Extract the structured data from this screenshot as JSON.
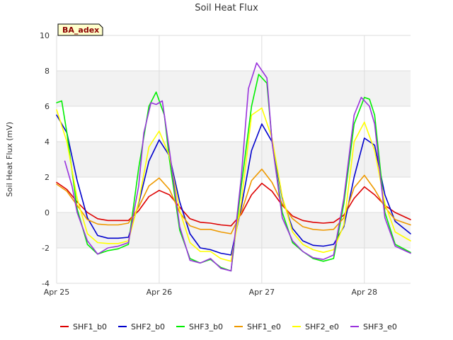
{
  "chart_data": {
    "type": "line",
    "title": "Soil Heat Flux",
    "ylabel": "Soil Heat Flux (mV)",
    "xlabel": "",
    "badge": "BA_adex",
    "ylim": [
      -4,
      10
    ],
    "yticks": [
      -4,
      -2,
      0,
      2,
      4,
      6,
      8,
      10
    ],
    "xlim": [
      0,
      3.45
    ],
    "xticks": [
      {
        "value": 0,
        "label": "Apr 25"
      },
      {
        "value": 1,
        "label": "Apr 26"
      },
      {
        "value": 2,
        "label": "Apr 27"
      },
      {
        "value": 3,
        "label": "Apr 28"
      }
    ],
    "series": [
      {
        "name": "SHF1_b0",
        "color": "#dd0000",
        "x": [
          0,
          0.1,
          0.2,
          0.3,
          0.4,
          0.5,
          0.6,
          0.7,
          0.8,
          0.9,
          1.0,
          1.1,
          1.2,
          1.3,
          1.4,
          1.5,
          1.6,
          1.7,
          1.8,
          1.9,
          2.0,
          2.1,
          2.2,
          2.3,
          2.4,
          2.5,
          2.6,
          2.7,
          2.8,
          2.9,
          3.0,
          3.1,
          3.2,
          3.3,
          3.45
        ],
        "values": [
          1.7,
          1.3,
          0.6,
          0.0,
          -0.35,
          -0.45,
          -0.45,
          -0.45,
          0.1,
          0.9,
          1.25,
          1.0,
          0.3,
          -0.35,
          -0.55,
          -0.6,
          -0.7,
          -0.75,
          -0.1,
          1.0,
          1.65,
          1.2,
          0.4,
          -0.2,
          -0.45,
          -0.55,
          -0.6,
          -0.55,
          -0.15,
          0.8,
          1.45,
          1.0,
          0.4,
          0.0,
          -0.4
        ]
      },
      {
        "name": "SHF2_b0",
        "color": "#0000cc",
        "x": [
          0,
          0.1,
          0.2,
          0.3,
          0.4,
          0.5,
          0.6,
          0.7,
          0.8,
          0.9,
          1.0,
          1.1,
          1.2,
          1.3,
          1.4,
          1.5,
          1.6,
          1.7,
          1.8,
          1.9,
          2.0,
          2.1,
          2.2,
          2.3,
          2.4,
          2.5,
          2.6,
          2.7,
          2.8,
          2.9,
          3.0,
          3.1,
          3.2,
          3.3,
          3.45
        ],
        "values": [
          5.5,
          4.5,
          1.8,
          -0.3,
          -1.3,
          -1.45,
          -1.45,
          -1.4,
          0.5,
          2.9,
          4.1,
          3.2,
          0.6,
          -1.2,
          -2.0,
          -2.1,
          -2.3,
          -2.4,
          0.3,
          3.5,
          5.0,
          4.0,
          0.8,
          -0.9,
          -1.6,
          -1.85,
          -1.9,
          -1.8,
          -0.8,
          2.0,
          4.2,
          3.8,
          1.0,
          -0.5,
          -1.2
        ]
      },
      {
        "name": "SHF3_b0",
        "color": "#00ee00",
        "x": [
          0,
          0.05,
          0.1,
          0.2,
          0.3,
          0.4,
          0.5,
          0.6,
          0.7,
          0.8,
          0.9,
          0.97,
          1.05,
          1.1,
          1.2,
          1.3,
          1.4,
          1.5,
          1.6,
          1.7,
          1.8,
          1.9,
          1.97,
          2.05,
          2.1,
          2.2,
          2.3,
          2.4,
          2.5,
          2.6,
          2.7,
          2.8,
          2.9,
          3.0,
          3.05,
          3.1,
          3.2,
          3.3,
          3.45
        ],
        "values": [
          6.2,
          6.3,
          4.5,
          0.2,
          -1.8,
          -2.35,
          -2.15,
          -2.05,
          -1.8,
          2.5,
          6.0,
          6.8,
          5.5,
          3.0,
          -1.0,
          -2.6,
          -2.85,
          -2.65,
          -3.1,
          -3.3,
          1.5,
          6.0,
          7.8,
          7.3,
          4.0,
          0.0,
          -1.7,
          -2.2,
          -2.6,
          -2.75,
          -2.6,
          0.5,
          5.0,
          6.5,
          6.4,
          5.5,
          0.0,
          -1.8,
          -2.25
        ]
      },
      {
        "name": "SHF1_e0",
        "color": "#ee9900",
        "x": [
          0,
          0.1,
          0.2,
          0.3,
          0.4,
          0.5,
          0.6,
          0.7,
          0.8,
          0.9,
          1.0,
          1.1,
          1.2,
          1.3,
          1.4,
          1.5,
          1.6,
          1.7,
          1.8,
          1.9,
          2.0,
          2.1,
          2.2,
          2.3,
          2.4,
          2.5,
          2.6,
          2.7,
          2.8,
          2.9,
          3.0,
          3.1,
          3.2,
          3.3,
          3.45
        ],
        "values": [
          1.6,
          1.2,
          0.4,
          -0.4,
          -0.65,
          -0.7,
          -0.7,
          -0.6,
          0.3,
          1.5,
          1.95,
          1.3,
          0.0,
          -0.75,
          -0.95,
          -0.95,
          -1.1,
          -1.2,
          0.0,
          1.8,
          2.45,
          1.7,
          0.5,
          -0.35,
          -0.8,
          -0.95,
          -1.0,
          -0.95,
          -0.3,
          1.4,
          2.1,
          1.3,
          0.3,
          -0.4,
          -0.7
        ]
      },
      {
        "name": "SHF2_e0",
        "color": "#ffff00",
        "x": [
          0,
          0.1,
          0.2,
          0.3,
          0.4,
          0.5,
          0.6,
          0.7,
          0.8,
          0.9,
          1.0,
          1.1,
          1.2,
          1.3,
          1.4,
          1.5,
          1.6,
          1.7,
          1.8,
          1.9,
          2.0,
          2.1,
          2.2,
          2.3,
          2.4,
          2.5,
          2.6,
          2.7,
          2.8,
          2.9,
          3.0,
          3.1,
          3.2,
          3.3,
          3.45
        ],
        "values": [
          5.8,
          4.0,
          0.8,
          -1.2,
          -1.7,
          -1.75,
          -1.75,
          -1.6,
          0.6,
          3.7,
          4.6,
          3.2,
          0.1,
          -1.7,
          -2.2,
          -2.2,
          -2.6,
          -2.75,
          0.6,
          5.5,
          5.9,
          4.2,
          0.9,
          -1.1,
          -1.8,
          -2.1,
          -2.25,
          -2.1,
          -0.7,
          4.0,
          5.1,
          3.5,
          0.5,
          -1.1,
          -1.6
        ]
      },
      {
        "name": "SHF3_e0",
        "color": "#9933dd",
        "x": [
          0.08,
          0.15,
          0.2,
          0.3,
          0.4,
          0.5,
          0.6,
          0.7,
          0.8,
          0.85,
          0.92,
          0.97,
          1.03,
          1.1,
          1.2,
          1.3,
          1.4,
          1.5,
          1.6,
          1.7,
          1.8,
          1.87,
          1.95,
          2.05,
          2.1,
          2.2,
          2.3,
          2.4,
          2.5,
          2.6,
          2.7,
          2.8,
          2.9,
          2.97,
          3.05,
          3.1,
          3.2,
          3.3,
          3.45
        ],
        "values": [
          2.9,
          1.5,
          0.0,
          -1.6,
          -2.35,
          -2.0,
          -1.9,
          -1.7,
          1.5,
          4.5,
          6.2,
          6.1,
          6.3,
          3.5,
          -0.8,
          -2.7,
          -2.85,
          -2.6,
          -3.15,
          -3.3,
          2.0,
          7.0,
          8.45,
          7.6,
          4.0,
          -0.3,
          -1.6,
          -2.2,
          -2.55,
          -2.65,
          -2.4,
          0.8,
          5.5,
          6.5,
          6.0,
          5.0,
          -0.3,
          -1.9,
          -2.3
        ]
      }
    ]
  }
}
